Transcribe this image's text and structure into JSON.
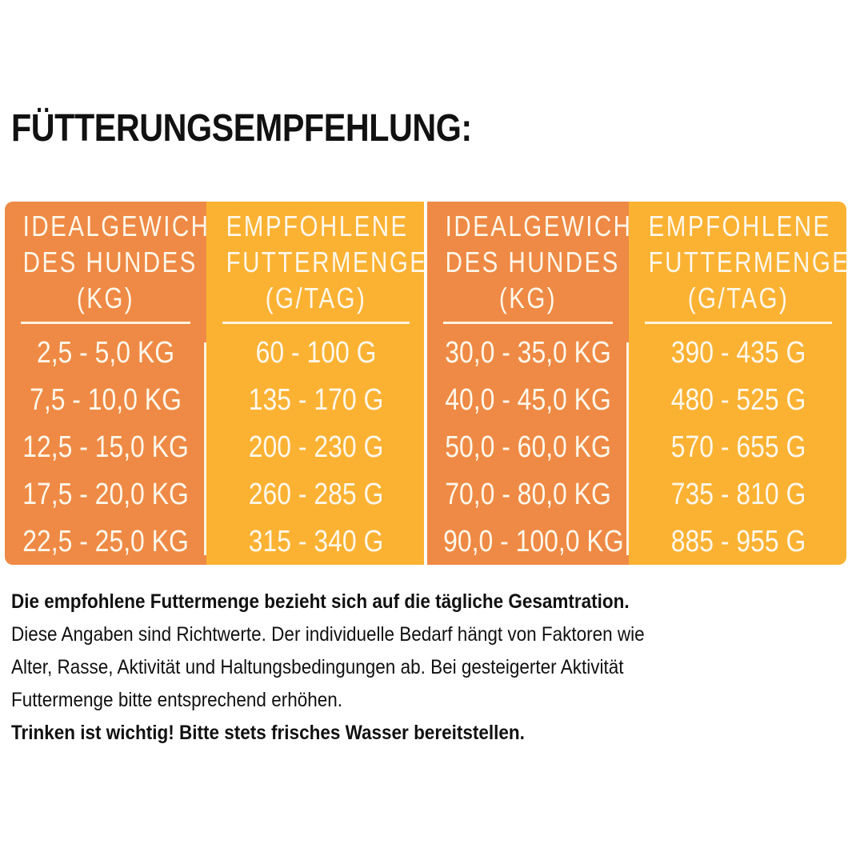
{
  "title": "FÜTTERUNGSEMPFEHLUNG:",
  "table": {
    "colors": {
      "weight_column": "#ee8a45",
      "food_column": "#fbb233",
      "text": "#fff7ea"
    },
    "headers": {
      "weight": [
        "IDEALGEWICHT",
        "DES HUNDES",
        "(KG)"
      ],
      "food": [
        "EMPFOHLENE",
        "FUTTERMENGE",
        "(G/TAG)"
      ]
    },
    "left": {
      "weights": [
        "2,5 - 5,0 KG",
        "7,5 - 10,0 KG",
        "12,5 - 15,0 KG",
        "17,5 - 20,0 KG",
        "22,5 - 25,0 KG"
      ],
      "amounts": [
        "60 - 100 G",
        "135 - 170 G",
        "200 - 230 G",
        "260 - 285 G",
        "315 - 340 G"
      ]
    },
    "right": {
      "weights": [
        "30,0 - 35,0 KG",
        "40,0 - 45,0 KG",
        "50,0 - 60,0 KG",
        "70,0 - 80,0 KG",
        "90,0 - 100,0 KG"
      ],
      "amounts": [
        "390 - 435 G",
        "480 - 525 G",
        "570 - 655 G",
        "735 - 810 G",
        "885 - 955 G"
      ]
    }
  },
  "notes": {
    "line1": "Die empfohlene Futtermenge bezieht sich auf die tägliche Gesamtration.",
    "line2": "Diese Angaben sind Richtwerte. Der individuelle Bedarf hängt von Faktoren wie",
    "line3": "Alter, Rasse, Aktivität und Haltungsbedingungen ab. Bei gesteigerter Aktivität",
    "line4": "Futtermenge bitte entsprechend erhöhen.",
    "line5": "Trinken ist wichtig! Bitte stets frisches Wasser bereitstellen."
  }
}
